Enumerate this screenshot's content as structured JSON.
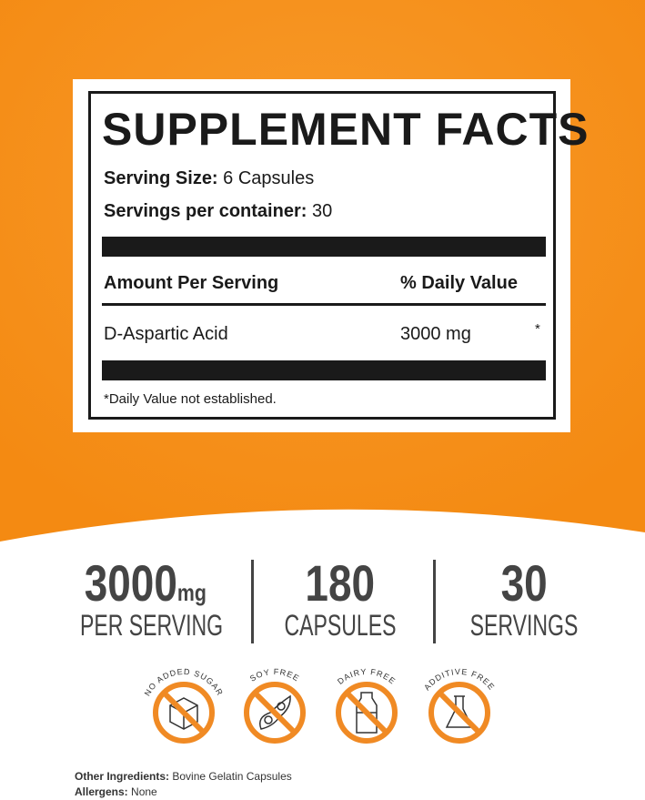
{
  "colors": {
    "orange": "#f7931e",
    "dark": "#1a1a1a",
    "stat_text": "#444444"
  },
  "facts": {
    "title": "SUPPLEMENT FACTS",
    "serving_size_label": "Serving Size:",
    "serving_size": "6 Capsules",
    "servings_label": "Servings per container:",
    "servings": "30",
    "amount_header": "Amount Per Serving",
    "dv_header": "% Daily Value",
    "ingredient": "D-Aspartic Acid",
    "amount": "3000 mg",
    "dv": "*",
    "footnote": "*Daily Value not established."
  },
  "stats": [
    {
      "value": "3000",
      "unit": "mg",
      "label": "PER SERVING"
    },
    {
      "value": "180",
      "label": "CAPSULES"
    },
    {
      "value": "30",
      "label": "SERVINGS"
    }
  ],
  "badges": [
    {
      "label": "NO ADDED SUGAR",
      "icon": "sugar-cube-icon"
    },
    {
      "label": "SOY FREE",
      "icon": "soybean-icon"
    },
    {
      "label": "DAIRY FREE",
      "icon": "milk-bottle-icon"
    },
    {
      "label": "ADDITIVE FREE",
      "icon": "flask-icon"
    }
  ],
  "footer": {
    "other_label": "Other Ingredients:",
    "other": "Bovine Gelatin Capsules",
    "allergens_label": "Allergens:",
    "allergens": "None"
  }
}
